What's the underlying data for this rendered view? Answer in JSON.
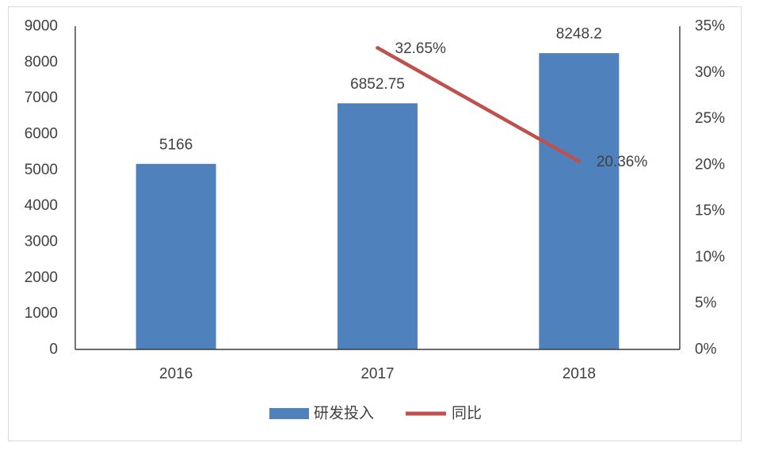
{
  "chart_data": {
    "type": "bar",
    "categories": [
      "2016",
      "2017",
      "2018"
    ],
    "series": [
      {
        "name": "研发投入",
        "type": "bar",
        "axis": "left",
        "color": "#4F81BD",
        "values": [
          5166,
          6852.75,
          8248.2
        ],
        "data_labels": [
          "5166",
          "6852.75",
          "8248.2"
        ]
      },
      {
        "name": "同比",
        "type": "line",
        "axis": "right",
        "color": "#C0504D",
        "values": [
          null,
          32.65,
          20.36
        ],
        "data_labels": [
          null,
          "32.65%",
          "20.36%"
        ]
      }
    ],
    "left_axis": {
      "ylim": [
        0,
        9000
      ],
      "ticks": [
        0,
        1000,
        2000,
        3000,
        4000,
        5000,
        6000,
        7000,
        8000,
        9000
      ],
      "tick_labels": [
        "0",
        "1000",
        "2000",
        "3000",
        "4000",
        "5000",
        "6000",
        "7000",
        "8000",
        "9000"
      ]
    },
    "right_axis": {
      "ylim": [
        0,
        35
      ],
      "ticks": [
        0,
        5,
        10,
        15,
        20,
        25,
        30,
        35
      ],
      "tick_labels": [
        "0%",
        "5%",
        "10%",
        "15%",
        "20%",
        "25%",
        "30%",
        "35%"
      ]
    },
    "grid": false,
    "legend": {
      "position": "bottom"
    }
  }
}
